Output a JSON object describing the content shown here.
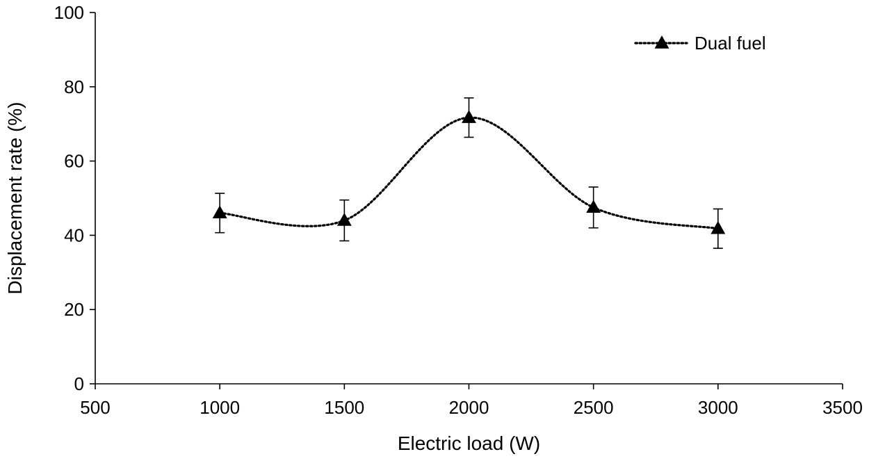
{
  "chart_data": {
    "type": "line",
    "title": "",
    "xlabel": "Electric load (W)",
    "ylabel": "Displacement rate (%)",
    "xlim": [
      500,
      3500
    ],
    "ylim": [
      0,
      100
    ],
    "xticks": [
      "500",
      "1000",
      "1500",
      "2000",
      "2500",
      "3000",
      "3500"
    ],
    "yticks": [
      "0",
      "20",
      "40",
      "60",
      "80",
      "100"
    ],
    "grid": false,
    "legend_position": "top-right",
    "series": [
      {
        "name": "Dual fuel",
        "line_style": "dotted-smooth",
        "marker": "triangle",
        "color": "#000000",
        "x": [
          1000,
          1500,
          2000,
          2500,
          3000
        ],
        "y": [
          46,
          44,
          71.7,
          47.5,
          41.8
        ],
        "error": [
          5.3,
          5.5,
          5.3,
          5.5,
          5.3
        ]
      }
    ]
  }
}
